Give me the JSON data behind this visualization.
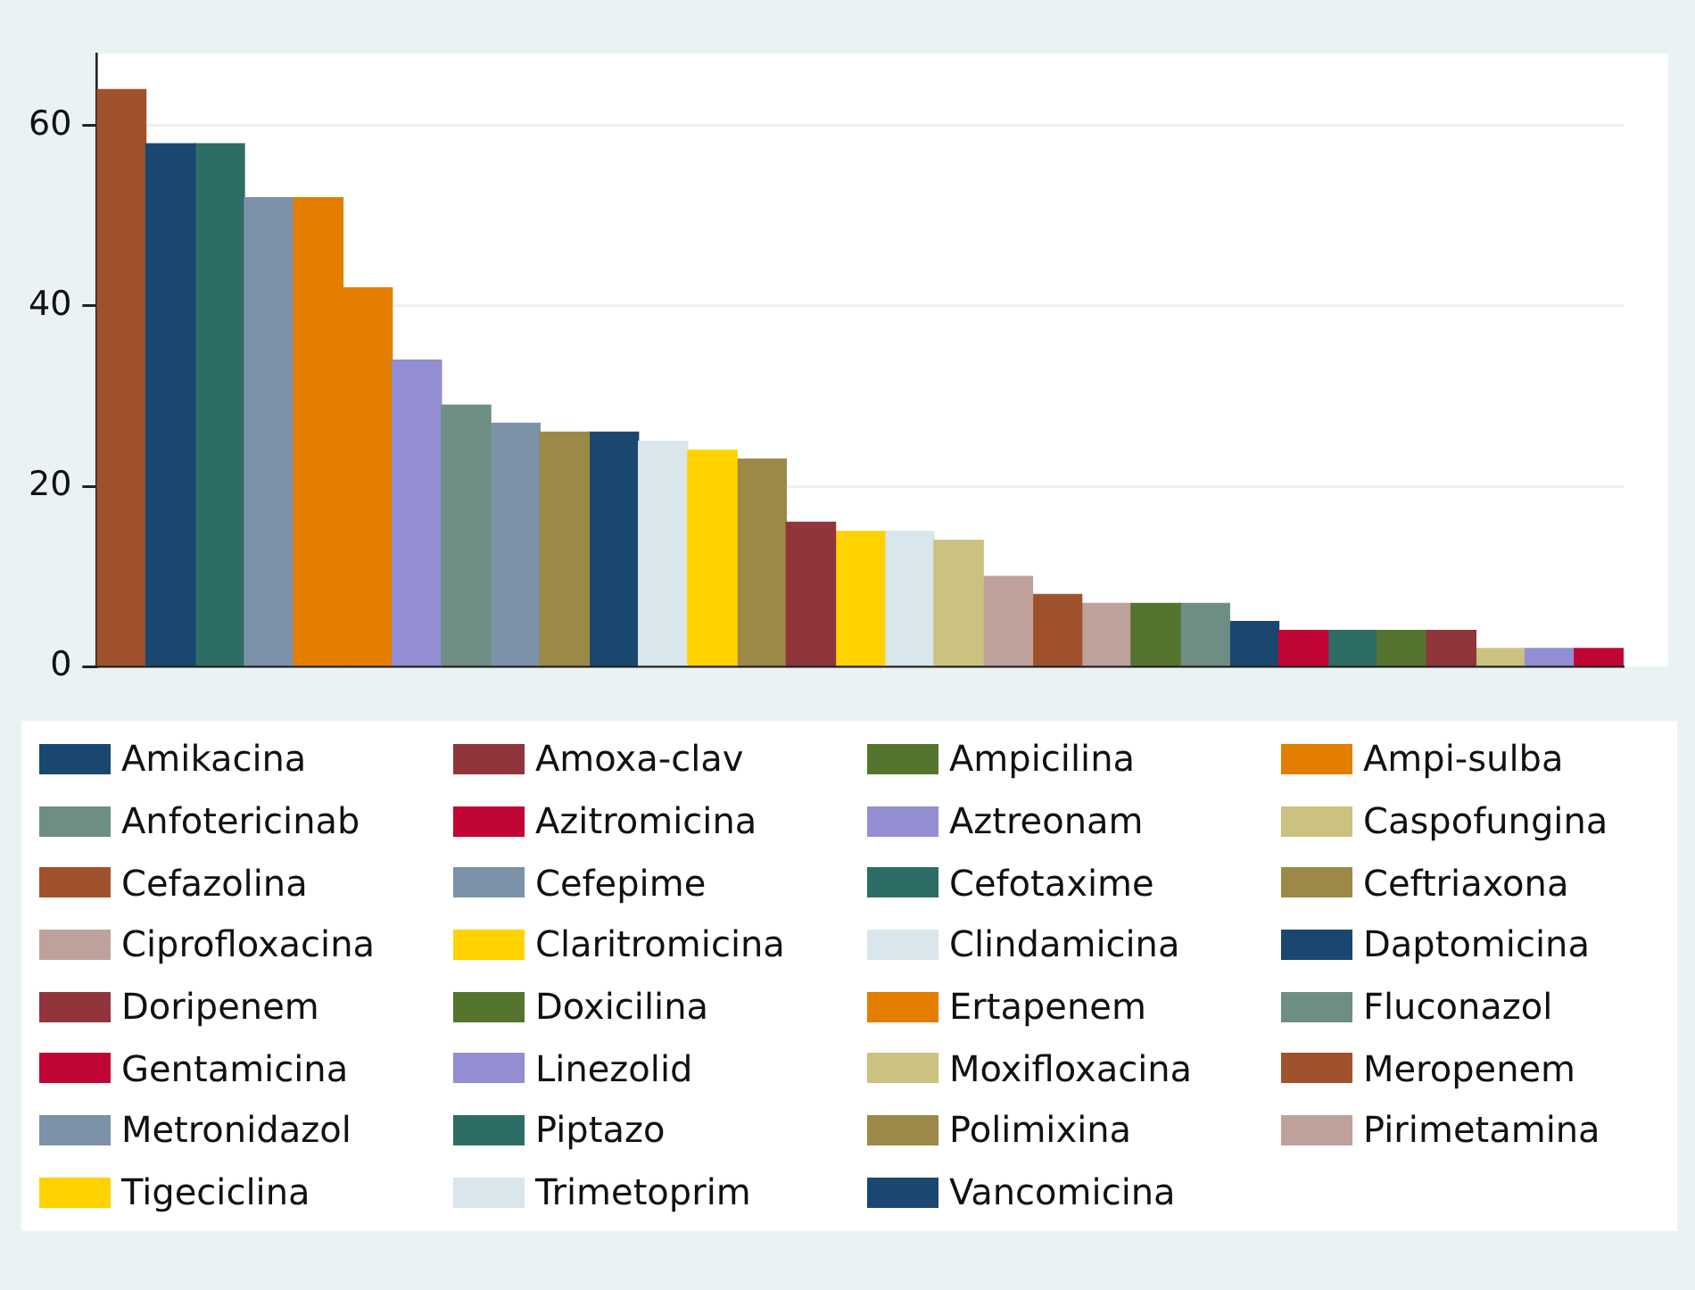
{
  "chart_data": {
    "type": "bar",
    "categories": [
      null,
      null,
      null,
      null,
      null,
      null,
      null,
      null,
      null,
      null,
      null,
      null,
      null,
      null,
      null,
      null,
      null,
      null,
      null,
      null,
      null,
      null,
      null,
      null,
      null,
      null,
      null,
      null,
      null,
      null,
      null
    ],
    "ylim": [
      0,
      68
    ],
    "yticks": [
      0,
      20,
      40,
      60
    ],
    "grid": "y",
    "legend": "bottom",
    "series": [
      {
        "name": "Amikacina",
        "color": "#1a476f",
        "values": [
          null,
          58,
          null,
          null,
          null,
          null,
          null,
          null,
          null,
          null,
          null,
          null,
          null,
          null,
          null,
          null,
          null,
          null,
          null,
          null,
          null,
          null,
          null,
          null,
          null,
          null,
          null,
          null,
          null,
          null,
          null
        ]
      },
      {
        "name": "Amoxa-clav",
        "color": "#90353b",
        "values": [
          null,
          null,
          null,
          null,
          null,
          null,
          null,
          null,
          null,
          null,
          null,
          null,
          null,
          null,
          16,
          null,
          null,
          null,
          null,
          null,
          null,
          null,
          null,
          null,
          null,
          null,
          null,
          null,
          null,
          null,
          null
        ]
      },
      {
        "name": "Ampicilina",
        "color": "#55752f",
        "values": [
          null,
          null,
          null,
          null,
          null,
          null,
          null,
          null,
          null,
          null,
          null,
          null,
          null,
          null,
          null,
          null,
          null,
          null,
          null,
          null,
          null,
          7,
          null,
          null,
          null,
          null,
          null,
          null,
          null,
          null,
          null
        ]
      },
      {
        "name": "Ampi-sulba",
        "color": "#e37e00",
        "values": [
          null,
          null,
          null,
          null,
          52,
          null,
          null,
          null,
          null,
          null,
          null,
          null,
          null,
          null,
          null,
          null,
          null,
          null,
          null,
          null,
          null,
          null,
          null,
          null,
          null,
          null,
          null,
          null,
          null,
          null,
          null
        ]
      },
      {
        "name": "Anfotericinab",
        "color": "#6e8e84",
        "values": [
          null,
          null,
          null,
          null,
          null,
          null,
          null,
          29,
          null,
          null,
          null,
          null,
          null,
          null,
          null,
          null,
          null,
          null,
          null,
          null,
          null,
          null,
          null,
          null,
          null,
          null,
          null,
          null,
          null,
          null,
          null
        ]
      },
      {
        "name": "Azitromicina",
        "color": "#c10534",
        "values": [
          null,
          null,
          null,
          null,
          null,
          null,
          null,
          null,
          null,
          null,
          null,
          null,
          null,
          null,
          null,
          null,
          null,
          null,
          null,
          null,
          null,
          null,
          null,
          null,
          4,
          null,
          null,
          null,
          null,
          null,
          null
        ]
      },
      {
        "name": "Aztreonam",
        "color": "#938dd2",
        "values": [
          null,
          null,
          null,
          null,
          null,
          null,
          34,
          null,
          null,
          null,
          null,
          null,
          null,
          null,
          null,
          null,
          null,
          null,
          null,
          null,
          null,
          null,
          null,
          null,
          null,
          null,
          null,
          null,
          null,
          null,
          null
        ]
      },
      {
        "name": "Caspofungina",
        "color": "#cac27e",
        "values": [
          null,
          null,
          null,
          null,
          null,
          null,
          null,
          null,
          null,
          null,
          null,
          null,
          null,
          null,
          null,
          null,
          null,
          14,
          null,
          null,
          null,
          null,
          null,
          null,
          null,
          null,
          null,
          null,
          null,
          null,
          null
        ]
      },
      {
        "name": "Cefazolina",
        "color": "#a0522d",
        "values": [
          64,
          null,
          null,
          null,
          null,
          null,
          null,
          null,
          null,
          null,
          null,
          null,
          null,
          null,
          null,
          null,
          null,
          null,
          null,
          null,
          null,
          null,
          null,
          null,
          null,
          null,
          null,
          null,
          null,
          null,
          null
        ]
      },
      {
        "name": "Cefepime",
        "color": "#7b92a8",
        "values": [
          null,
          null,
          null,
          52,
          null,
          null,
          null,
          null,
          null,
          null,
          null,
          null,
          null,
          null,
          null,
          null,
          null,
          null,
          null,
          null,
          null,
          null,
          null,
          null,
          null,
          null,
          null,
          null,
          null,
          null,
          null
        ]
      },
      {
        "name": "Cefotaxime",
        "color": "#2d6d66",
        "values": [
          null,
          null,
          58,
          null,
          null,
          null,
          null,
          null,
          null,
          null,
          null,
          null,
          null,
          null,
          null,
          null,
          null,
          null,
          null,
          null,
          null,
          null,
          null,
          null,
          null,
          null,
          null,
          null,
          null,
          null,
          null
        ]
      },
      {
        "name": "Ceftriaxona",
        "color": "#9c8847",
        "values": [
          null,
          null,
          null,
          null,
          null,
          null,
          null,
          null,
          null,
          26,
          null,
          null,
          null,
          null,
          null,
          null,
          null,
          null,
          null,
          null,
          null,
          null,
          null,
          null,
          null,
          null,
          null,
          null,
          null,
          null,
          null
        ]
      },
      {
        "name": "Ciprofloxacina",
        "color": "#bfa19c",
        "values": [
          null,
          null,
          null,
          null,
          null,
          null,
          null,
          null,
          null,
          null,
          null,
          null,
          null,
          null,
          null,
          null,
          null,
          null,
          10,
          null,
          null,
          null,
          null,
          null,
          null,
          null,
          null,
          null,
          null,
          null,
          null
        ]
      },
      {
        "name": "Claritromicina",
        "color": "#ffd200",
        "values": [
          null,
          null,
          null,
          null,
          null,
          null,
          null,
          null,
          null,
          null,
          null,
          null,
          24,
          null,
          null,
          null,
          null,
          null,
          null,
          null,
          null,
          null,
          null,
          null,
          null,
          null,
          null,
          null,
          null,
          null,
          null
        ]
      },
      {
        "name": "Clindamicina",
        "color": "#d9e6eb",
        "values": [
          null,
          null,
          null,
          null,
          null,
          null,
          null,
          null,
          null,
          null,
          null,
          25,
          null,
          null,
          null,
          null,
          null,
          null,
          null,
          null,
          null,
          null,
          null,
          null,
          null,
          null,
          null,
          null,
          null,
          null,
          null
        ]
      },
      {
        "name": "Daptomicina",
        "color": "#1a476f",
        "values": [
          null,
          null,
          null,
          null,
          null,
          null,
          null,
          null,
          null,
          null,
          26,
          null,
          null,
          null,
          null,
          null,
          null,
          null,
          null,
          null,
          null,
          null,
          null,
          null,
          null,
          null,
          null,
          null,
          null,
          null,
          null
        ]
      },
      {
        "name": "Doripenem",
        "color": "#90353b",
        "values": [
          null,
          null,
          null,
          null,
          null,
          null,
          null,
          null,
          null,
          null,
          null,
          null,
          null,
          null,
          null,
          null,
          null,
          null,
          null,
          null,
          null,
          null,
          null,
          null,
          null,
          null,
          null,
          4,
          null,
          null,
          null
        ]
      },
      {
        "name": "Doxicilina",
        "color": "#55752f",
        "values": [
          null,
          null,
          null,
          null,
          null,
          null,
          null,
          null,
          null,
          null,
          null,
          null,
          null,
          null,
          null,
          null,
          null,
          null,
          null,
          null,
          null,
          null,
          null,
          null,
          null,
          null,
          4,
          null,
          null,
          null,
          null
        ]
      },
      {
        "name": "Ertapenem",
        "color": "#e37e00",
        "values": [
          null,
          null,
          null,
          null,
          null,
          42,
          null,
          null,
          null,
          null,
          null,
          null,
          null,
          null,
          null,
          null,
          null,
          null,
          null,
          null,
          null,
          null,
          null,
          null,
          null,
          null,
          null,
          null,
          null,
          null,
          null
        ]
      },
      {
        "name": "Fluconazol",
        "color": "#6e8e84",
        "values": [
          null,
          null,
          null,
          null,
          null,
          null,
          null,
          null,
          null,
          null,
          null,
          null,
          null,
          null,
          null,
          null,
          null,
          null,
          null,
          null,
          null,
          null,
          7,
          null,
          null,
          null,
          null,
          null,
          null,
          null,
          null
        ]
      },
      {
        "name": "Gentamicina",
        "color": "#c10534",
        "values": [
          null,
          null,
          null,
          null,
          null,
          null,
          null,
          null,
          null,
          null,
          null,
          null,
          null,
          null,
          null,
          null,
          null,
          null,
          null,
          null,
          null,
          null,
          null,
          null,
          null,
          null,
          null,
          null,
          null,
          null,
          2
        ]
      },
      {
        "name": "Linezolid",
        "color": "#938dd2",
        "values": [
          null,
          null,
          null,
          null,
          null,
          null,
          null,
          null,
          null,
          null,
          null,
          null,
          null,
          null,
          null,
          null,
          null,
          null,
          null,
          null,
          null,
          null,
          null,
          null,
          null,
          null,
          null,
          null,
          null,
          2,
          null
        ]
      },
      {
        "name": "Moxifloxacina",
        "color": "#cac27e",
        "values": [
          null,
          null,
          null,
          null,
          null,
          null,
          null,
          null,
          null,
          null,
          null,
          null,
          null,
          null,
          null,
          null,
          null,
          null,
          null,
          null,
          null,
          null,
          null,
          null,
          null,
          null,
          null,
          null,
          2,
          null,
          null
        ]
      },
      {
        "name": "Meropenem",
        "color": "#a0522d",
        "values": [
          null,
          null,
          null,
          null,
          null,
          null,
          null,
          null,
          null,
          null,
          null,
          null,
          null,
          null,
          null,
          null,
          null,
          null,
          null,
          8,
          null,
          null,
          null,
          null,
          null,
          null,
          null,
          null,
          null,
          null,
          null
        ]
      },
      {
        "name": "Metronidazol",
        "color": "#7b92a8",
        "values": [
          null,
          null,
          null,
          null,
          null,
          null,
          null,
          null,
          27,
          null,
          null,
          null,
          null,
          null,
          null,
          null,
          null,
          null,
          null,
          null,
          null,
          null,
          null,
          null,
          null,
          null,
          null,
          null,
          null,
          null,
          null
        ]
      },
      {
        "name": "Piptazo",
        "color": "#2d6d66",
        "values": [
          null,
          null,
          null,
          null,
          null,
          null,
          null,
          null,
          null,
          null,
          null,
          null,
          null,
          null,
          null,
          null,
          null,
          null,
          null,
          null,
          null,
          null,
          null,
          null,
          null,
          4,
          null,
          null,
          null,
          null,
          null
        ]
      },
      {
        "name": "Polimixina",
        "color": "#9c8847",
        "values": [
          null,
          null,
          null,
          null,
          null,
          null,
          null,
          null,
          null,
          null,
          null,
          null,
          null,
          23,
          null,
          null,
          null,
          null,
          null,
          null,
          null,
          null,
          null,
          null,
          null,
          null,
          null,
          null,
          null,
          null,
          null
        ]
      },
      {
        "name": "Pirimetamina",
        "color": "#bfa19c",
        "values": [
          null,
          null,
          null,
          null,
          null,
          null,
          null,
          null,
          null,
          null,
          null,
          null,
          null,
          null,
          null,
          null,
          null,
          null,
          null,
          null,
          7,
          null,
          null,
          null,
          null,
          null,
          null,
          null,
          null,
          null,
          null
        ]
      },
      {
        "name": "Tigeciclina",
        "color": "#ffd200",
        "values": [
          null,
          null,
          null,
          null,
          null,
          null,
          null,
          null,
          null,
          null,
          null,
          null,
          null,
          null,
          null,
          15,
          null,
          null,
          null,
          null,
          null,
          null,
          null,
          null,
          null,
          null,
          null,
          null,
          null,
          null,
          null
        ]
      },
      {
        "name": "Trimetoprim",
        "color": "#d9e6eb",
        "values": [
          null,
          null,
          null,
          null,
          null,
          null,
          null,
          null,
          null,
          null,
          null,
          null,
          null,
          null,
          null,
          null,
          15,
          null,
          null,
          null,
          null,
          null,
          null,
          null,
          null,
          null,
          null,
          null,
          null,
          null,
          null
        ]
      },
      {
        "name": "Vancomicina",
        "color": "#1a476f",
        "values": [
          null,
          null,
          null,
          null,
          null,
          null,
          null,
          null,
          null,
          null,
          null,
          null,
          null,
          null,
          null,
          null,
          null,
          null,
          null,
          null,
          null,
          null,
          null,
          5,
          null,
          null,
          null,
          null,
          null,
          null,
          null
        ]
      }
    ]
  }
}
